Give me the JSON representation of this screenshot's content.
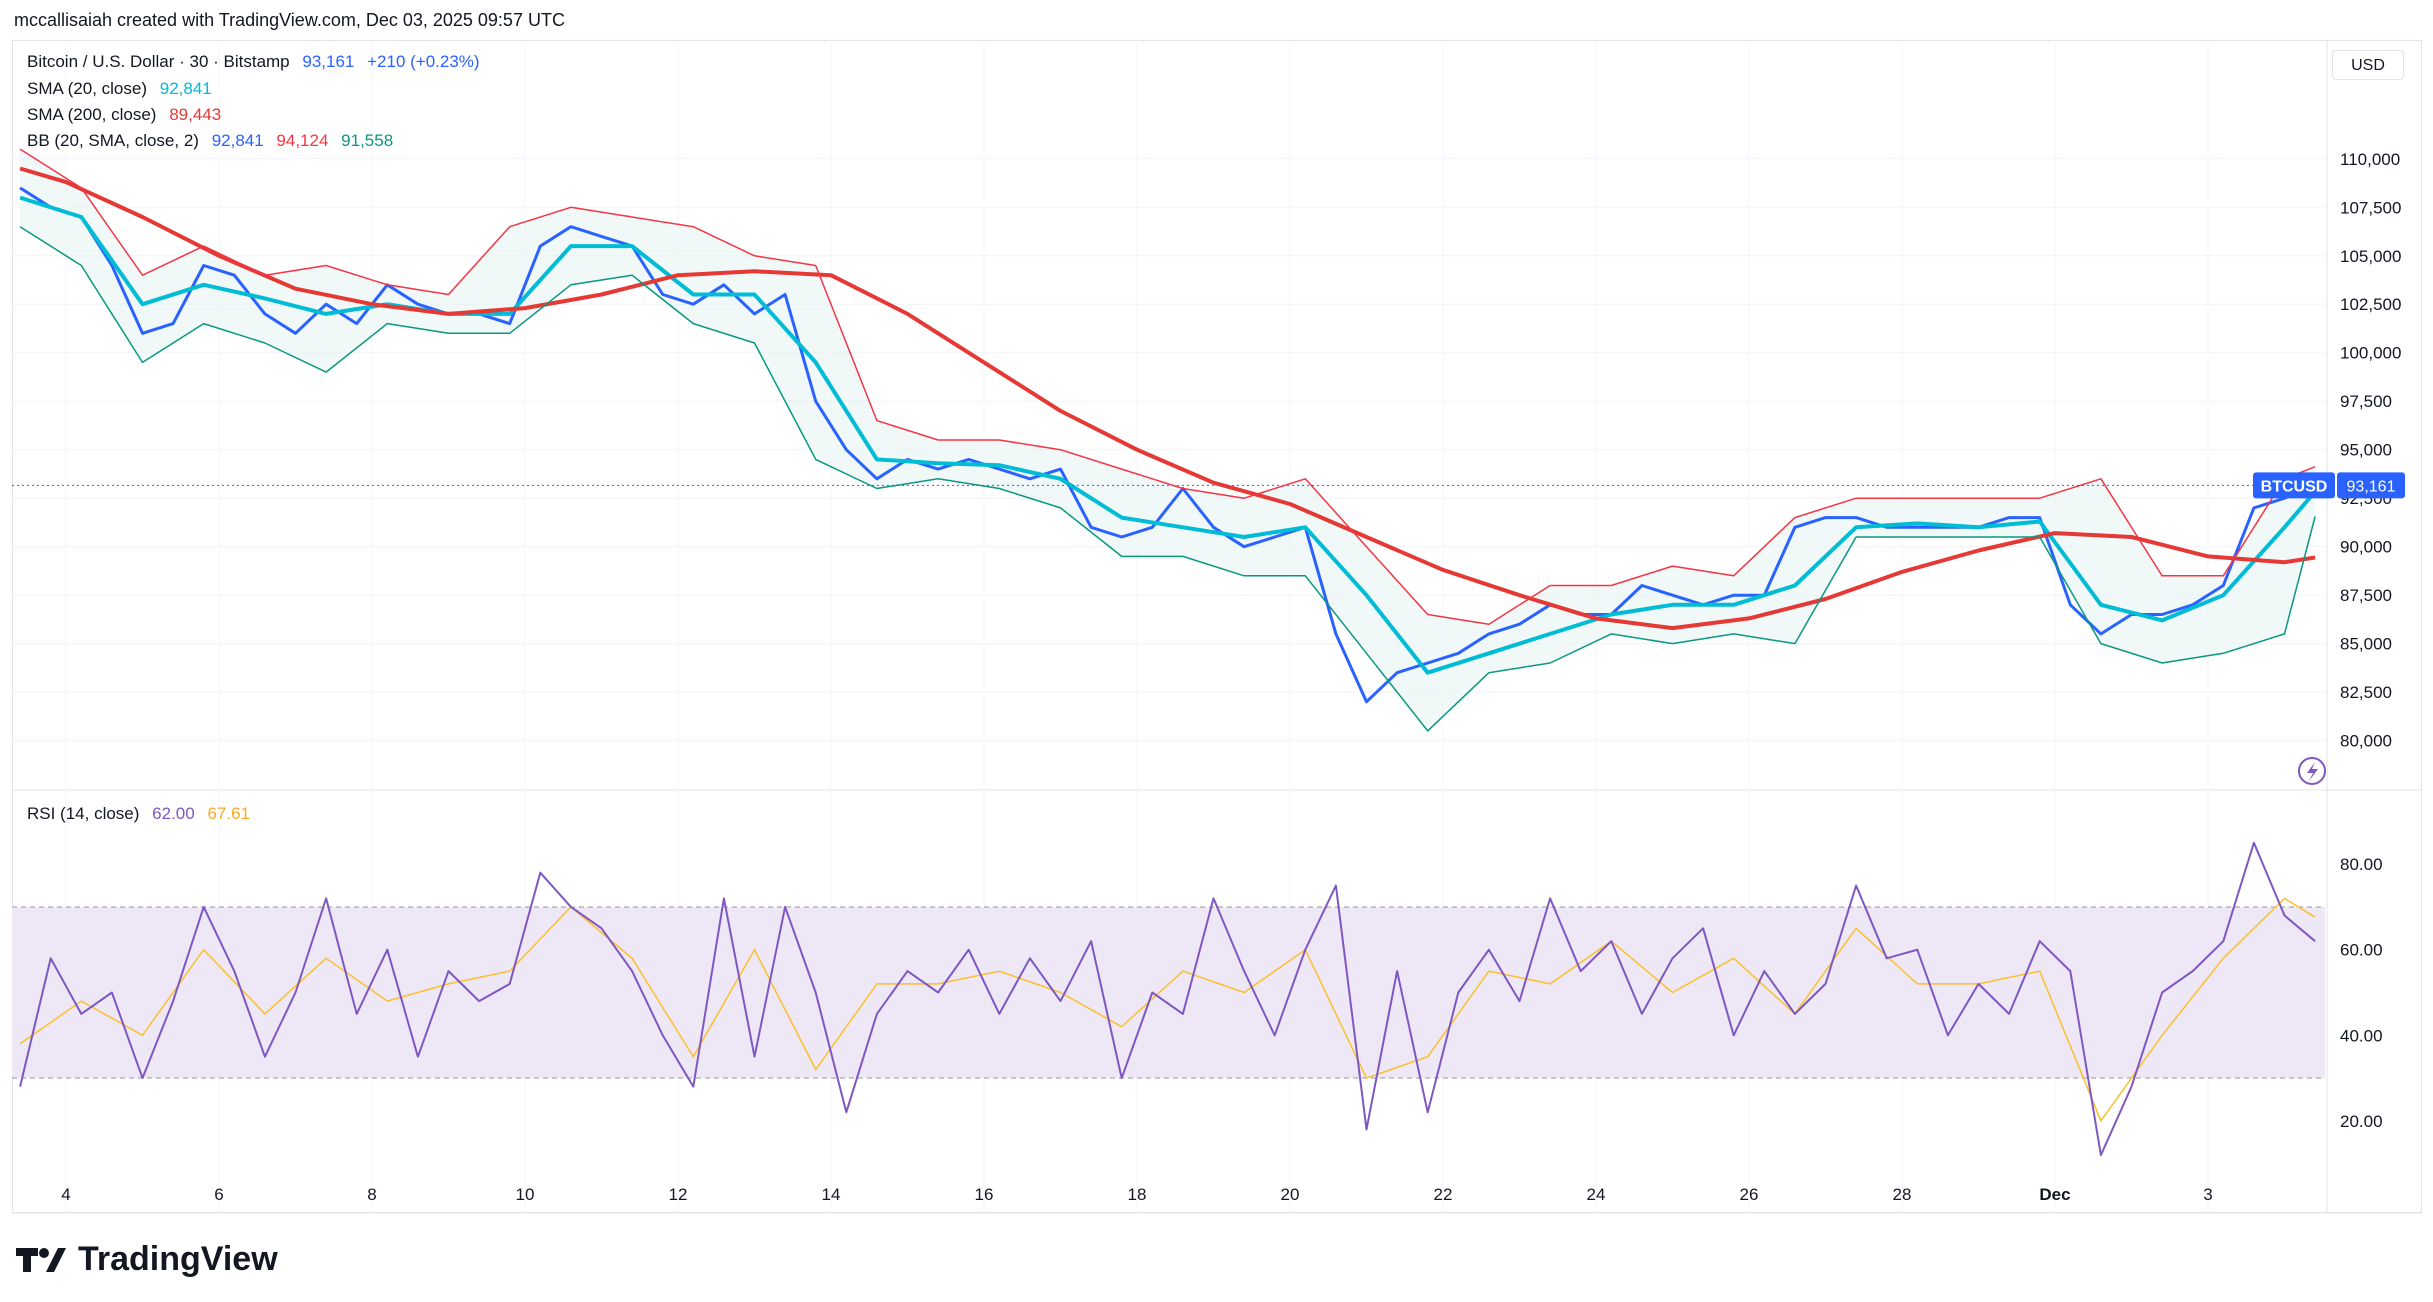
{
  "header": {
    "attribution": "mccallisaiah created with TradingView.com, Dec 03, 2025 09:57 UTC"
  },
  "main_legend": {
    "symbol": "Bitcoin / U.S. Dollar · 30 · Bitstamp",
    "price": "93,161",
    "change": "+210 (+0.23%)",
    "sma20_label": "SMA (20, close)",
    "sma20_value": "92,841",
    "sma200_label": "SMA (200, close)",
    "sma200_value": "89,443",
    "bb_label": "BB (20, SMA, close, 2)",
    "bb_basis": "92,841",
    "bb_upper": "94,124",
    "bb_lower": "91,558"
  },
  "rsi_legend": {
    "label": "RSI (14, close)",
    "rsi_value": "62.00",
    "ma_value": "67.61"
  },
  "currency_button": "USD",
  "price_tag": {
    "symbol": "BTCUSD",
    "value": "93,161"
  },
  "brand": "TradingView",
  "colors": {
    "price": "#2962ff",
    "sma20": "#00bcd4",
    "sma200": "#e53935",
    "bb_upper": "#f23645",
    "bb_lower": "#089981",
    "rsi": "#7e57c2",
    "rsi_ma": "#fbc02d",
    "rsi_band": "#ede7f6",
    "tag": "#2962ff"
  },
  "chart_data": [
    {
      "type": "line",
      "title": "Bitcoin / U.S. Dollar · 30 · Bitstamp",
      "x_ticks": [
        "4",
        "6",
        "8",
        "10",
        "12",
        "14",
        "16",
        "18",
        "20",
        "22",
        "24",
        "26",
        "28",
        "Dec",
        "3"
      ],
      "y_ticks": [
        "80,000",
        "82,500",
        "85,000",
        "87,500",
        "90,000",
        "92,500",
        "95,000",
        "97,500",
        "100,000",
        "102,500",
        "105,000",
        "107,500",
        "110,000"
      ],
      "ylim": [
        79000,
        112000
      ],
      "series": [
        {
          "name": "BTCUSD",
          "x": [
            3.4,
            3.8,
            4.2,
            4.6,
            5.0,
            5.4,
            5.8,
            6.2,
            6.6,
            7.0,
            7.4,
            7.8,
            8.2,
            8.6,
            9.0,
            9.4,
            9.8,
            10.2,
            10.6,
            11.0,
            11.4,
            11.8,
            12.2,
            12.6,
            13.0,
            13.4,
            13.8,
            14.2,
            14.6,
            15.0,
            15.4,
            15.8,
            16.2,
            16.6,
            17.0,
            17.4,
            17.8,
            18.2,
            18.6,
            19.0,
            19.4,
            19.8,
            20.2,
            20.6,
            21.0,
            21.4,
            21.8,
            22.2,
            22.6,
            23.0,
            23.4,
            23.8,
            24.2,
            24.6,
            25.0,
            25.4,
            25.8,
            26.2,
            26.6,
            27.0,
            27.4,
            27.8,
            28.2,
            28.6,
            29.0,
            29.4,
            29.8,
            30.2,
            30.6,
            31.0,
            31.4,
            31.8,
            32.2,
            32.6,
            33.0,
            33.4
          ],
          "values": [
            108500,
            107500,
            107000,
            104500,
            101000,
            101500,
            104500,
            104000,
            102000,
            101000,
            102500,
            101500,
            103500,
            102500,
            102000,
            102000,
            101500,
            105500,
            106500,
            106000,
            105500,
            103000,
            102500,
            103500,
            102000,
            103000,
            97500,
            95000,
            93500,
            94500,
            94000,
            94500,
            94000,
            93500,
            94000,
            91000,
            90500,
            91000,
            93000,
            91000,
            90000,
            90500,
            91000,
            85500,
            82000,
            83500,
            84000,
            84500,
            85500,
            86000,
            87000,
            86500,
            86500,
            88000,
            87500,
            87000,
            87500,
            87500,
            91000,
            91500,
            91500,
            91000,
            91000,
            91000,
            91000,
            91500,
            91500,
            87000,
            85500,
            86500,
            86500,
            87000,
            88000,
            92000,
            92500,
            93161
          ]
        },
        {
          "name": "SMA (20, close)",
          "x": [
            3.4,
            4.2,
            5.0,
            5.8,
            6.6,
            7.4,
            8.2,
            9.0,
            9.8,
            10.6,
            11.4,
            12.2,
            13.0,
            13.8,
            14.6,
            15.4,
            16.2,
            17.0,
            17.8,
            18.6,
            19.4,
            20.2,
            21.0,
            21.8,
            22.6,
            23.4,
            24.2,
            25.0,
            25.8,
            26.6,
            27.4,
            28.2,
            29.0,
            29.8,
            30.6,
            31.4,
            32.2,
            33.0,
            33.4
          ],
          "values": [
            108000,
            107000,
            102500,
            103500,
            102800,
            102000,
            102500,
            102000,
            102000,
            105500,
            105500,
            103000,
            103000,
            99500,
            94500,
            94300,
            94200,
            93500,
            91500,
            91000,
            90500,
            91000,
            87500,
            83500,
            84500,
            85500,
            86500,
            87000,
            87000,
            88000,
            91000,
            91200,
            91000,
            91300,
            87000,
            86200,
            87500,
            91000,
            92841
          ]
        },
        {
          "name": "SMA (200, close)",
          "x": [
            3.4,
            4.0,
            5.0,
            6.0,
            7.0,
            8.0,
            9.0,
            10.0,
            11.0,
            12.0,
            13.0,
            14.0,
            15.0,
            16.0,
            17.0,
            18.0,
            19.0,
            20.0,
            21.0,
            22.0,
            23.0,
            24.0,
            25.0,
            26.0,
            27.0,
            28.0,
            29.0,
            30.0,
            31.0,
            32.0,
            33.0,
            33.4
          ],
          "values": [
            109500,
            108800,
            107000,
            105000,
            103300,
            102500,
            102000,
            102300,
            103000,
            104000,
            104200,
            104000,
            102000,
            99500,
            97000,
            95000,
            93300,
            92200,
            90500,
            88800,
            87500,
            86300,
            85800,
            86300,
            87300,
            88700,
            89800,
            90700,
            90500,
            89500,
            89200,
            89443
          ]
        },
        {
          "name": "BB upper",
          "x": [
            3.4,
            4.2,
            5.0,
            5.8,
            6.6,
            7.4,
            8.2,
            9.0,
            9.8,
            10.6,
            11.4,
            12.2,
            13.0,
            13.8,
            14.6,
            15.4,
            16.2,
            17.0,
            17.8,
            18.6,
            19.4,
            20.2,
            21.0,
            21.8,
            22.6,
            23.4,
            24.2,
            25.0,
            25.8,
            26.6,
            27.4,
            28.2,
            29.0,
            29.8,
            30.6,
            31.4,
            32.2,
            33.0,
            33.4
          ],
          "values": [
            110500,
            108500,
            104000,
            105500,
            104000,
            104500,
            103500,
            103000,
            106500,
            107500,
            107000,
            106500,
            105000,
            104500,
            96500,
            95500,
            95500,
            95000,
            94000,
            93000,
            92500,
            93500,
            90000,
            86500,
            86000,
            88000,
            88000,
            89000,
            88500,
            91500,
            92500,
            92500,
            92500,
            92500,
            93500,
            88500,
            88500,
            93500,
            94124
          ]
        },
        {
          "name": "BB lower",
          "x": [
            3.4,
            4.2,
            5.0,
            5.8,
            6.6,
            7.4,
            8.2,
            9.0,
            9.8,
            10.6,
            11.4,
            12.2,
            13.0,
            13.8,
            14.6,
            15.4,
            16.2,
            17.0,
            17.8,
            18.6,
            19.4,
            20.2,
            21.0,
            21.8,
            22.6,
            23.4,
            24.2,
            25.0,
            25.8,
            26.6,
            27.4,
            28.2,
            29.0,
            29.8,
            30.6,
            31.4,
            32.2,
            33.0,
            33.4
          ],
          "values": [
            106500,
            104500,
            99500,
            101500,
            100500,
            99000,
            101500,
            101000,
            101000,
            103500,
            104000,
            101500,
            100500,
            94500,
            93000,
            93500,
            93000,
            92000,
            89500,
            89500,
            88500,
            88500,
            84500,
            80500,
            83500,
            84000,
            85500,
            85000,
            85500,
            85000,
            90500,
            90500,
            90500,
            90500,
            85000,
            84000,
            84500,
            85500,
            91558
          ]
        }
      ]
    },
    {
      "type": "line",
      "title": "RSI (14, close)",
      "x_ticks": [
        "4",
        "6",
        "8",
        "10",
        "12",
        "14",
        "16",
        "18",
        "20",
        "22",
        "24",
        "26",
        "28",
        "Dec",
        "3"
      ],
      "y_ticks": [
        "20.00",
        "40.00",
        "60.00",
        "80.00"
      ],
      "ylim": [
        5,
        95
      ],
      "bands": [
        30,
        70
      ],
      "series": [
        {
          "name": "RSI",
          "x": [
            3.4,
            3.8,
            4.2,
            4.6,
            5.0,
            5.4,
            5.8,
            6.2,
            6.6,
            7.0,
            7.4,
            7.8,
            8.2,
            8.6,
            9.0,
            9.4,
            9.8,
            10.2,
            10.6,
            11.0,
            11.4,
            11.8,
            12.2,
            12.6,
            13.0,
            13.4,
            13.8,
            14.2,
            14.6,
            15.0,
            15.4,
            15.8,
            16.2,
            16.6,
            17.0,
            17.4,
            17.8,
            18.2,
            18.6,
            19.0,
            19.4,
            19.8,
            20.2,
            20.6,
            21.0,
            21.4,
            21.8,
            22.2,
            22.6,
            23.0,
            23.4,
            23.8,
            24.2,
            24.6,
            25.0,
            25.4,
            25.8,
            26.2,
            26.6,
            27.0,
            27.4,
            27.8,
            28.2,
            28.6,
            29.0,
            29.4,
            29.8,
            30.2,
            30.6,
            31.0,
            31.4,
            31.8,
            32.2,
            32.6,
            33.0,
            33.4
          ],
          "values": [
            28,
            58,
            45,
            50,
            30,
            48,
            70,
            55,
            35,
            50,
            72,
            45,
            60,
            35,
            55,
            48,
            52,
            78,
            70,
            65,
            55,
            40,
            28,
            72,
            35,
            70,
            50,
            22,
            45,
            55,
            50,
            60,
            45,
            58,
            48,
            62,
            30,
            50,
            45,
            72,
            55,
            40,
            60,
            75,
            18,
            55,
            22,
            50,
            60,
            48,
            72,
            55,
            62,
            45,
            58,
            65,
            40,
            55,
            45,
            52,
            75,
            58,
            60,
            40,
            52,
            45,
            62,
            55,
            12,
            28,
            50,
            55,
            62,
            85,
            68,
            62
          ]
        },
        {
          "name": "RSI MA",
          "x": [
            3.4,
            4.2,
            5.0,
            5.8,
            6.6,
            7.4,
            8.2,
            9.0,
            9.8,
            10.6,
            11.4,
            12.2,
            13.0,
            13.8,
            14.6,
            15.4,
            16.2,
            17.0,
            17.8,
            18.6,
            19.4,
            20.2,
            21.0,
            21.8,
            22.6,
            23.4,
            24.2,
            25.0,
            25.8,
            26.6,
            27.4,
            28.2,
            29.0,
            29.8,
            30.6,
            31.4,
            32.2,
            33.0,
            33.4
          ],
          "values": [
            38,
            48,
            40,
            60,
            45,
            58,
            48,
            52,
            55,
            70,
            58,
            35,
            60,
            32,
            52,
            52,
            55,
            50,
            42,
            55,
            50,
            60,
            30,
            35,
            55,
            52,
            62,
            50,
            58,
            45,
            65,
            52,
            52,
            55,
            20,
            40,
            58,
            72,
            67.61
          ]
        }
      ]
    }
  ]
}
